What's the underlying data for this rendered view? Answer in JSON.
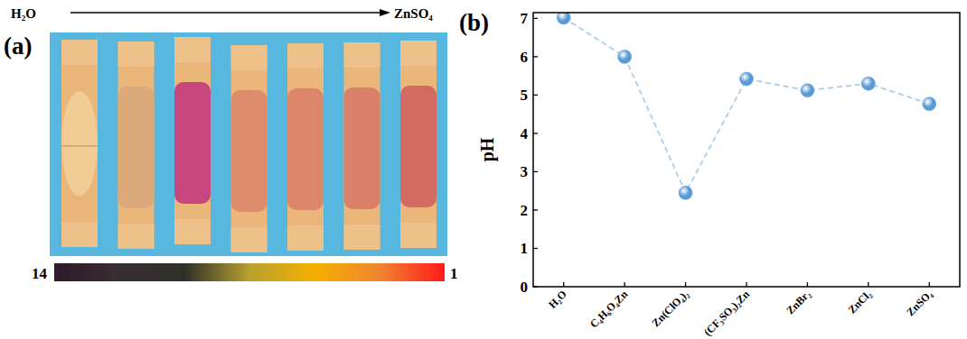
{
  "panel_a": {
    "label": "(a)",
    "start_label": "H₂O",
    "end_label": "ZnSO₄",
    "strip_colors": [
      "#f2cc95",
      "#dba97a",
      "#c7467e",
      "#dd8c6c",
      "#dc866c",
      "#da8069",
      "#d26c62"
    ],
    "scale_colors": [
      "#2d1a2a",
      "#3a2e33",
      "#2f3028",
      "#b8a030",
      "#f5b000",
      "#f08530",
      "#ff1a1a"
    ],
    "scale_min_label": 14,
    "scale_max_label": 1
  },
  "chart_data": {
    "type": "line",
    "title": "(b)",
    "y_label": "pH",
    "categories": [
      "H₂O",
      "C₄H₆O₄Zn",
      "Zn(ClO₄)₂",
      "(CF₃SO₃)₂Zn",
      "ZnBr₂",
      "ZnCl₂",
      "ZnSO₄"
    ],
    "values": [
      7.02,
      6.0,
      2.45,
      5.42,
      5.12,
      5.3,
      4.77
    ],
    "color": "#5b9bd5",
    "marker": "circle",
    "line_style": "dashed",
    "ylim": [
      0,
      7.15
    ],
    "yticks": [
      0,
      1,
      2,
      3,
      4,
      5,
      6,
      7
    ],
    "grid": false
  }
}
